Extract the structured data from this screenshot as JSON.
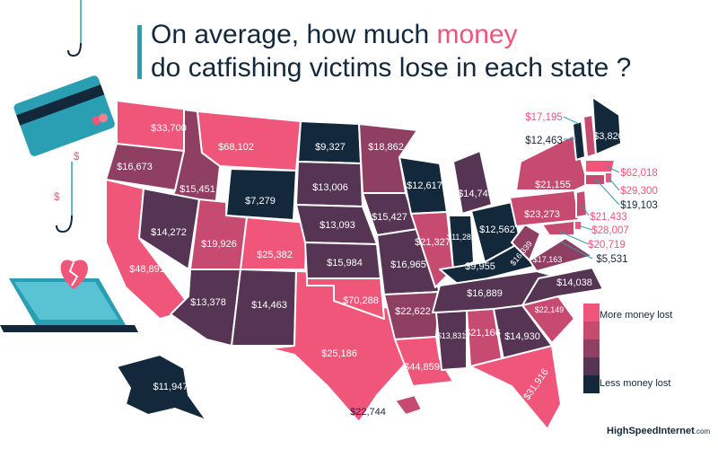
{
  "title": {
    "line1_before": "On average, how much ",
    "line1_highlight": "money",
    "line2": "do catfishing victims lose in each state ?"
  },
  "legend": {
    "high_label": "More money lost",
    "low_label": "Less money lost",
    "colors": [
      "#f0557a",
      "#c74a70",
      "#8e3f62",
      "#553553",
      "#14283c"
    ]
  },
  "brand": {
    "name": "HighSpeedInternet",
    "domain": ".com"
  },
  "decor": {
    "dollar_sign": "$"
  },
  "state_values": {
    "WA": "$33,700",
    "OR": "$16,673",
    "ID": "$15,451",
    "MT": "$68,102",
    "WY": "$7,279",
    "CA": "$48,891",
    "NV": "$14,272",
    "UT": "$19,926",
    "CO": "$25,382",
    "AZ": "$13,378",
    "NM": "$14,463",
    "TX": "$25,186",
    "ND": "$9,327",
    "SD": "$13,006",
    "NE": "$13,093",
    "KS": "$15,984",
    "OK": "$70,288",
    "MN": "$18,862",
    "IA": "$15,427",
    "MO": "$16,965",
    "AR": "$22,622",
    "LA": "$44,859",
    "WI": "$12,617",
    "IL": "$21,327",
    "MI": "$14,745",
    "IN": "$11,282",
    "OH": "$12,562",
    "KY": "$9,955",
    "TN": "$16,889",
    "MS": "$13,831",
    "AL": "$21,166",
    "GA": "$14,930",
    "FL": "$31,916",
    "SC": "$22,149",
    "NC": "$14,038",
    "VA": "$17,163",
    "WV": "$16,339",
    "PA": "$23,273",
    "NY": "$21,155",
    "VT": "$12,463",
    "NH": "$17,195",
    "ME": "$3,820",
    "MA": "$62,018",
    "RI": "$29,300",
    "CT": "$19,103",
    "NJ": "$21,433",
    "DE": "$28,007",
    "MD": "$20,719",
    "DC": "$5,531",
    "AK": "$11,947",
    "HI": "$22,744"
  }
}
